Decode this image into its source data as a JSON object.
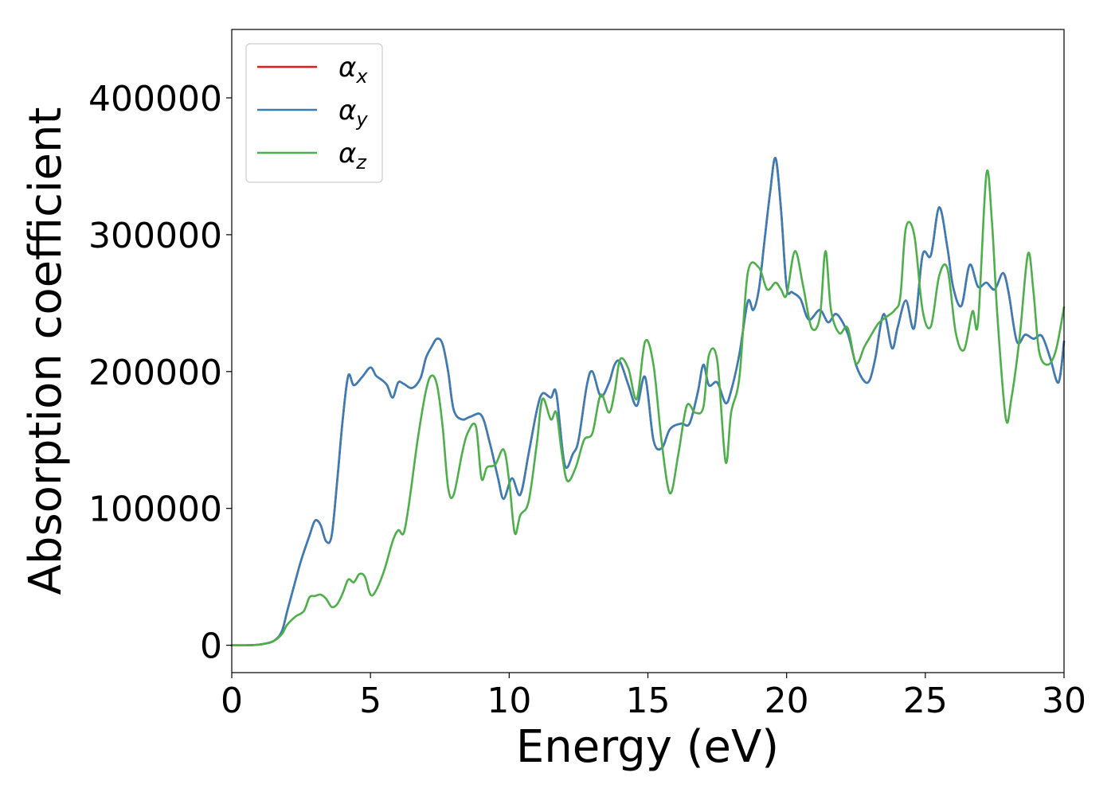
{
  "chart_data": {
    "type": "line",
    "xlabel": "Energy (eV)",
    "ylabel": "Absorption coefficient",
    "xlim": [
      0,
      30
    ],
    "ylim": [
      -20000,
      450000
    ],
    "xticks": [
      0,
      5,
      10,
      15,
      20,
      25,
      30
    ],
    "xtick_labels": [
      "0",
      "5",
      "10",
      "15",
      "20",
      "25",
      "30"
    ],
    "yticks": [
      0,
      100000,
      200000,
      300000,
      400000
    ],
    "ytick_labels": [
      "0",
      "100000",
      "200000",
      "300000",
      "400000"
    ],
    "grid": false,
    "legend_position": "upper-left",
    "series": [
      {
        "name": "αx",
        "legend_base": "α",
        "legend_sub": "x",
        "color": "#e41a1c",
        "x": [
          0,
          0.5,
          1.0,
          1.5,
          1.8,
          2.0,
          2.2,
          2.5,
          2.8,
          3.0,
          3.2,
          3.4,
          3.6,
          3.8,
          4.0,
          4.2,
          4.4,
          4.7,
          5.0,
          5.2,
          5.4,
          5.6,
          5.8,
          6.0,
          6.2,
          6.5,
          6.8,
          7.0,
          7.2,
          7.4,
          7.6,
          7.8,
          8.0,
          8.3,
          8.6,
          9.0,
          9.3,
          9.6,
          9.8,
          10.1,
          10.4,
          10.7,
          11.0,
          11.2,
          11.5,
          11.7,
          12.0,
          12.3,
          12.5,
          12.8,
          13.0,
          13.3,
          13.6,
          13.8,
          14.0,
          14.3,
          14.6,
          14.9,
          15.2,
          15.5,
          15.8,
          16.2,
          16.5,
          16.8,
          17.0,
          17.2,
          17.5,
          17.8,
          18.0,
          18.3,
          18.6,
          18.8,
          19.0,
          19.2,
          19.4,
          19.6,
          19.8,
          20.0,
          20.2,
          20.5,
          20.8,
          21.2,
          21.5,
          21.8,
          22.2,
          22.5,
          22.8,
          23.0,
          23.2,
          23.5,
          23.8,
          24.0,
          24.3,
          24.6,
          24.9,
          25.2,
          25.5,
          25.8,
          26.0,
          26.3,
          26.6,
          26.9,
          27.2,
          27.5,
          27.8,
          28.0,
          28.3,
          28.6,
          28.9,
          29.2,
          29.5,
          29.8,
          30.0
        ],
        "y": [
          0,
          0,
          500,
          3000,
          10000,
          25000,
          40000,
          62000,
          80000,
          91000,
          88000,
          76000,
          80000,
          120000,
          165000,
          197000,
          190000,
          196000,
          203000,
          197000,
          194000,
          190000,
          181000,
          192000,
          191000,
          188000,
          195000,
          210000,
          218000,
          224000,
          220000,
          200000,
          172000,
          165000,
          167000,
          168000,
          148000,
          122000,
          107000,
          122000,
          110000,
          140000,
          172000,
          184000,
          181000,
          184000,
          132000,
          140000,
          150000,
          190000,
          200000,
          182000,
          192000,
          205000,
          207000,
          190000,
          175000,
          196000,
          150000,
          144000,
          158000,
          162000,
          162000,
          185000,
          205000,
          190000,
          192000,
          177000,
          186000,
          213000,
          251000,
          245000,
          260000,
          295000,
          330000,
          356000,
          318000,
          262000,
          258000,
          253000,
          238000,
          245000,
          236000,
          242000,
          228000,
          205000,
          193000,
          194000,
          210000,
          242000,
          217000,
          232000,
          252000,
          232000,
          285000,
          285000,
          320000,
          290000,
          262000,
          248000,
          278000,
          262000,
          265000,
          260000,
          272000,
          258000,
          222000,
          227000,
          224000,
          226000,
          210000,
          192000,
          222000
        ]
      },
      {
        "name": "αy",
        "legend_base": "α",
        "legend_sub": "y",
        "color": "#377eb8",
        "x": [
          0,
          0.5,
          1.0,
          1.5,
          1.8,
          2.0,
          2.2,
          2.5,
          2.8,
          3.0,
          3.2,
          3.4,
          3.6,
          3.8,
          4.0,
          4.2,
          4.4,
          4.7,
          5.0,
          5.2,
          5.4,
          5.6,
          5.8,
          6.0,
          6.2,
          6.5,
          6.8,
          7.0,
          7.2,
          7.4,
          7.6,
          7.8,
          8.0,
          8.3,
          8.6,
          9.0,
          9.3,
          9.6,
          9.8,
          10.1,
          10.4,
          10.7,
          11.0,
          11.2,
          11.5,
          11.7,
          12.0,
          12.3,
          12.5,
          12.8,
          13.0,
          13.3,
          13.6,
          13.8,
          14.0,
          14.3,
          14.6,
          14.9,
          15.2,
          15.5,
          15.8,
          16.2,
          16.5,
          16.8,
          17.0,
          17.2,
          17.5,
          17.8,
          18.0,
          18.3,
          18.6,
          18.8,
          19.0,
          19.2,
          19.4,
          19.6,
          19.8,
          20.0,
          20.2,
          20.5,
          20.8,
          21.2,
          21.5,
          21.8,
          22.2,
          22.5,
          22.8,
          23.0,
          23.2,
          23.5,
          23.8,
          24.0,
          24.3,
          24.6,
          24.9,
          25.2,
          25.5,
          25.8,
          26.0,
          26.3,
          26.6,
          26.9,
          27.2,
          27.5,
          27.8,
          28.0,
          28.3,
          28.6,
          28.9,
          29.2,
          29.5,
          29.8,
          30.0
        ],
        "y": [
          0,
          0,
          500,
          3000,
          10000,
          25000,
          40000,
          62000,
          80000,
          91000,
          88000,
          76000,
          80000,
          120000,
          165000,
          197000,
          190000,
          196000,
          203000,
          197000,
          194000,
          190000,
          181000,
          192000,
          191000,
          188000,
          195000,
          210000,
          218000,
          224000,
          220000,
          200000,
          172000,
          165000,
          167000,
          168000,
          148000,
          122000,
          107000,
          122000,
          110000,
          140000,
          172000,
          184000,
          181000,
          184000,
          132000,
          140000,
          150000,
          190000,
          200000,
          182000,
          192000,
          205000,
          207000,
          190000,
          175000,
          196000,
          150000,
          144000,
          158000,
          162000,
          162000,
          185000,
          205000,
          190000,
          192000,
          177000,
          186000,
          213000,
          251000,
          245000,
          260000,
          295000,
          330000,
          356000,
          318000,
          262000,
          258000,
          253000,
          238000,
          245000,
          236000,
          242000,
          228000,
          205000,
          193000,
          194000,
          210000,
          242000,
          217000,
          232000,
          252000,
          232000,
          285000,
          285000,
          320000,
          290000,
          262000,
          248000,
          278000,
          262000,
          265000,
          260000,
          272000,
          258000,
          222000,
          227000,
          224000,
          226000,
          210000,
          192000,
          222000
        ]
      },
      {
        "name": "αz",
        "legend_base": "α",
        "legend_sub": "z",
        "color": "#4daf4a",
        "x": [
          0,
          0.5,
          1.0,
          1.5,
          1.8,
          2.0,
          2.3,
          2.6,
          2.8,
          3.0,
          3.2,
          3.4,
          3.6,
          3.8,
          4.0,
          4.2,
          4.4,
          4.6,
          4.8,
          5.0,
          5.2,
          5.5,
          5.8,
          6.0,
          6.2,
          6.4,
          6.7,
          7.0,
          7.2,
          7.4,
          7.6,
          7.8,
          8.0,
          8.3,
          8.5,
          8.8,
          9.0,
          9.2,
          9.5,
          9.8,
          10.0,
          10.2,
          10.4,
          10.7,
          11.0,
          11.2,
          11.5,
          11.7,
          11.9,
          12.1,
          12.4,
          12.7,
          13.0,
          13.3,
          13.6,
          13.8,
          14.0,
          14.3,
          14.6,
          14.9,
          15.2,
          15.5,
          15.8,
          16.1,
          16.4,
          16.7,
          17.0,
          17.2,
          17.5,
          17.8,
          18.0,
          18.3,
          18.6,
          19.0,
          19.3,
          19.6,
          19.8,
          20.0,
          20.3,
          20.6,
          20.9,
          21.2,
          21.4,
          21.6,
          21.9,
          22.2,
          22.5,
          22.8,
          23.0,
          23.3,
          23.6,
          23.9,
          24.1,
          24.3,
          24.6,
          24.9,
          25.2,
          25.5,
          25.8,
          26.1,
          26.4,
          26.7,
          26.9,
          27.2,
          27.4,
          27.6,
          27.9,
          28.1,
          28.4,
          28.7,
          28.9,
          29.1,
          29.4,
          29.7,
          30.0
        ],
        "y": [
          0,
          0,
          500,
          3000,
          8000,
          15000,
          21000,
          25000,
          35000,
          36000,
          37000,
          34000,
          28000,
          30000,
          38000,
          48000,
          46000,
          52000,
          50000,
          37000,
          40000,
          55000,
          76000,
          84000,
          82000,
          105000,
          150000,
          186000,
          197000,
          190000,
          160000,
          115000,
          110000,
          140000,
          155000,
          160000,
          122000,
          130000,
          132000,
          143000,
          120000,
          82000,
          95000,
          105000,
          148000,
          180000,
          165000,
          170000,
          140000,
          120000,
          130000,
          150000,
          155000,
          183000,
          170000,
          185000,
          209000,
          202000,
          180000,
          222000,
          205000,
          148000,
          111000,
          140000,
          175000,
          170000,
          174000,
          212000,
          208000,
          134000,
          170000,
          196000,
          272000,
          276000,
          260000,
          265000,
          260000,
          256000,
          288000,
          262000,
          232000,
          240000,
          288000,
          245000,
          228000,
          232000,
          206000,
          218000,
          225000,
          235000,
          240000,
          245000,
          255000,
          305000,
          300000,
          245000,
          233000,
          270000,
          275000,
          228000,
          216000,
          244000,
          236000,
          344000,
          310000,
          240000,
          166000,
          180000,
          225000,
          286000,
          258000,
          215000,
          205000,
          215000,
          247000
        ]
      }
    ]
  }
}
